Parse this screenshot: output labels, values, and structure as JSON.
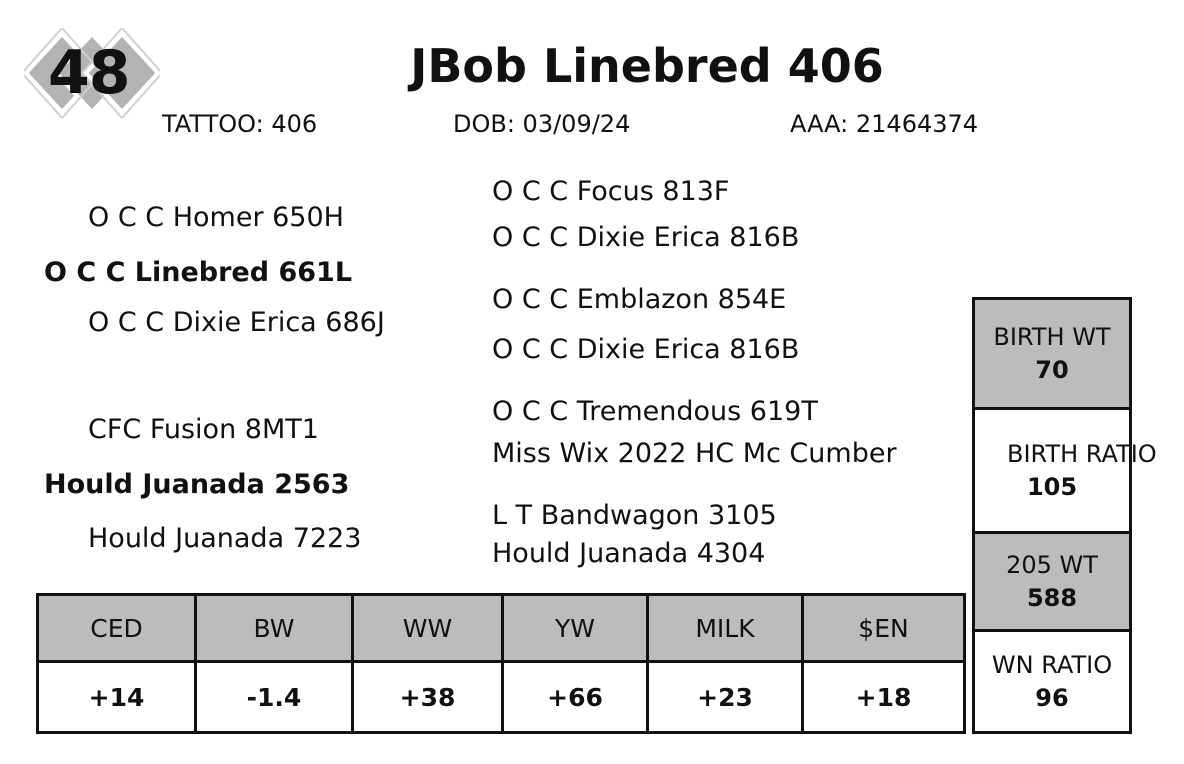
{
  "lot_number": "48",
  "title": "JBob Linebred 406",
  "info": {
    "tattoo": "TATTOO:  406",
    "dob": "DOB: 03/09/24",
    "aaa": "AAA:  21464374"
  },
  "pedigree": {
    "sire": "O C C Linebred 661L",
    "sire_sire": "O C C Homer 650H",
    "sire_dam": "O C C Dixie Erica 686J",
    "sss": "O C C Focus 813F",
    "ssd": "O C C Dixie Erica 816B",
    "sds": "O C C Emblazon 854E",
    "sdd": "O C C Dixie Erica 816B",
    "dam": "Hould Juanada 2563",
    "dam_sire": "CFC Fusion 8MT1",
    "dam_dam": "Hould Juanada 7223",
    "dss": "O C C Tremendous 619T",
    "dsd": "Miss Wix 2022 HC Mc Cumber",
    "dds": "L T Bandwagon 3105",
    "ddd": "Hould Juanada 4304"
  },
  "epd": {
    "headers": [
      "CED",
      "BW",
      "WW",
      "YW",
      "MILK",
      "$EN"
    ],
    "values": [
      "+14",
      "-1.4",
      "+38",
      "+66",
      "+23",
      "+18"
    ]
  },
  "performance": [
    {
      "label": "BIRTH WT",
      "value": "70"
    },
    {
      "label": "BIRTH RATIO",
      "value": "105"
    },
    {
      "label": "205 WT",
      "value": "588"
    },
    {
      "label": "WN RATIO",
      "value": "96"
    }
  ],
  "colors": {
    "header_gray": "#bdbcbc",
    "logo_gray": "#b3b3b3"
  }
}
